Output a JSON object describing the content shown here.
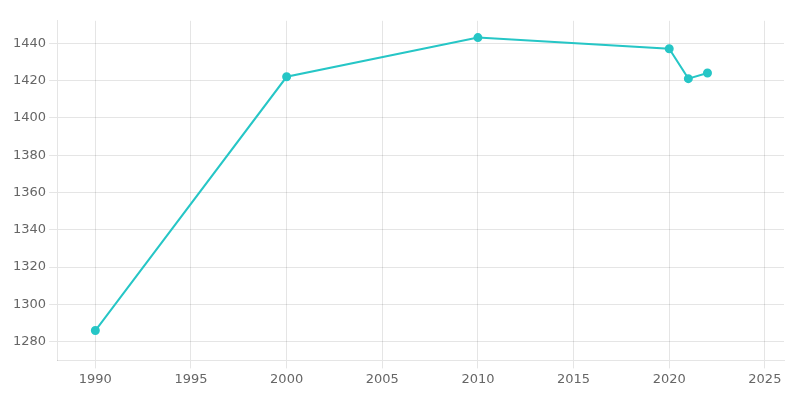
{
  "chart_data": {
    "type": "line",
    "x": [
      1990,
      2000,
      2010,
      2020,
      2021,
      2022
    ],
    "values": [
      1286,
      1422,
      1443,
      1437,
      1421,
      1424
    ],
    "color": "#26c6c6",
    "marker": "circle",
    "xlim": [
      1988,
      2026
    ],
    "ylim": [
      1270,
      1452
    ],
    "xticks": [
      1990,
      1995,
      2000,
      2005,
      2010,
      2015,
      2020,
      2025
    ],
    "yticks": [
      1280,
      1300,
      1320,
      1340,
      1360,
      1380,
      1400,
      1420,
      1440
    ],
    "grid": true
  }
}
